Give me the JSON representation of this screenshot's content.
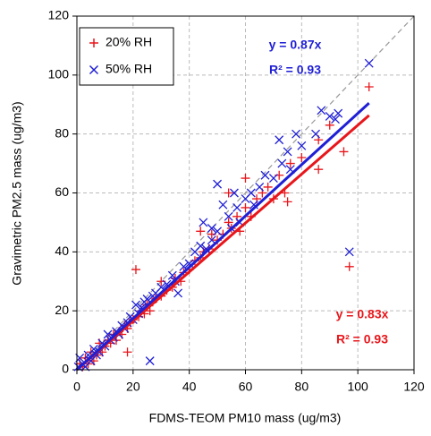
{
  "chart_data": {
    "type": "scatter",
    "x_label": "FDMS-TEOM PM10 mass (ug/m3)",
    "y_label": "Gravimetric PM2.5 mass (ug/m3)",
    "xlim": [
      0,
      120
    ],
    "ylim": [
      0,
      120
    ],
    "xticks": [
      0,
      20,
      40,
      60,
      80,
      100,
      120
    ],
    "yticks": [
      0,
      20,
      40,
      60,
      80,
      100,
      120
    ],
    "grid": true,
    "identity_line": true,
    "legend": "upper left",
    "series": [
      {
        "name": "20% RH",
        "color": "#e8161b",
        "marker": "plus",
        "x": [
          1,
          2,
          3,
          4,
          5,
          6,
          7,
          8,
          9,
          10,
          11,
          12,
          13,
          14,
          15,
          16,
          17,
          18,
          19,
          20,
          21,
          22,
          23,
          24,
          25,
          26,
          27,
          28,
          30,
          32,
          34,
          35,
          37,
          38,
          40,
          42,
          44,
          45,
          47,
          48,
          50,
          52,
          54,
          55,
          57,
          58,
          60,
          62,
          64,
          66,
          68,
          70,
          72,
          74,
          75,
          76,
          80,
          86,
          86,
          90,
          95,
          97,
          104,
          60,
          54,
          44,
          30,
          18
        ],
        "values": [
          2,
          1,
          4,
          2,
          6,
          3,
          5,
          9,
          6,
          8,
          10,
          9,
          12,
          10,
          13,
          12,
          15,
          14,
          16,
          17,
          34,
          18,
          20,
          19,
          22,
          20,
          23,
          24,
          25,
          27,
          28,
          31,
          30,
          33,
          34,
          37,
          38,
          40,
          41,
          46,
          44,
          46,
          50,
          48,
          52,
          47,
          55,
          52,
          58,
          60,
          62,
          58,
          66,
          60,
          57,
          70,
          72,
          68,
          78,
          83,
          74,
          35,
          96,
          65,
          60,
          47,
          30,
          6
        ],
        "fit": {
          "slope": 0.83,
          "label": "y = 0.83x",
          "r2": 0.93,
          "r2_label": "R² = 0.93"
        }
      },
      {
        "name": "50% RH",
        "color": "#1f1fd6",
        "marker": "cross",
        "x": [
          0.5,
          1,
          2,
          3,
          4,
          5,
          6,
          7,
          8,
          9,
          10,
          11,
          12,
          13,
          14,
          15,
          16,
          17,
          18,
          19,
          20,
          21,
          22,
          23,
          24,
          26,
          25,
          27,
          28,
          30,
          32,
          34,
          35,
          36,
          38,
          40,
          42,
          44,
          45,
          46,
          48,
          50,
          50,
          52,
          54,
          55,
          57,
          58,
          60,
          62,
          63,
          65,
          67,
          70,
          72,
          73,
          75,
          76,
          78,
          80,
          85,
          87,
          90,
          92,
          93,
          97,
          104,
          56,
          48
        ],
        "values": [
          1,
          4,
          2,
          1,
          5,
          3,
          7,
          5,
          6,
          9,
          8,
          12,
          10,
          11,
          13,
          12,
          15,
          14,
          16,
          18,
          17,
          22,
          19,
          21,
          23,
          3,
          24,
          25,
          26,
          28,
          29,
          32,
          30,
          26,
          35,
          36,
          40,
          42,
          50,
          41,
          44,
          63,
          47,
          56,
          52,
          48,
          55,
          50,
          58,
          60,
          56,
          62,
          66,
          65,
          78,
          70,
          74,
          68,
          80,
          76,
          80,
          88,
          86,
          85,
          87,
          40,
          104,
          60,
          48
        ],
        "fit": {
          "slope": 0.87,
          "label": "y = 0.87x",
          "r2": 0.93,
          "r2_label": "R² = 0.93"
        }
      }
    ]
  }
}
